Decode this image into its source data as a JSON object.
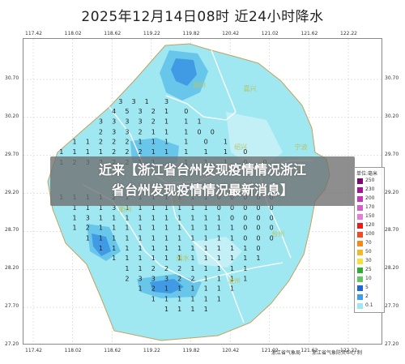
{
  "title": "2025年12月14日08时  近24小时降水",
  "headline": {
    "line1": "近来【浙江省台州发现疫情情况浙江",
    "line2": "省台州发现疫情情况最新消息】"
  },
  "lon_ticks": [
    "117.42",
    "118.02",
    "118.62",
    "119.22",
    "119.82",
    "120.42",
    "121.02",
    "121.62",
    "122.22"
  ],
  "lat_ticks": [
    "30.70",
    "30.20",
    "29.70",
    "29.20",
    "28.70",
    "28.20",
    "27.70",
    "27.20"
  ],
  "cities": [
    "湖州",
    "嘉兴",
    "绍兴",
    "宁波",
    "衢州",
    "金华",
    "台州",
    "丽水",
    "温州"
  ],
  "legend": {
    "title": "单位:毫米",
    "levels": [
      {
        "label": "250",
        "color": "#7a0a6e"
      },
      {
        "label": "230",
        "color": "#a11696"
      },
      {
        "label": "200",
        "color": "#c13bb3"
      },
      {
        "label": "170",
        "color": "#d45ecb"
      },
      {
        "label": "150",
        "color": "#e17fd8"
      },
      {
        "label": "120",
        "color": "#ea1b1b"
      },
      {
        "label": "100",
        "color": "#f24a25"
      },
      {
        "label": "70",
        "color": "#f5871e"
      },
      {
        "label": "50",
        "color": "#f7b72a"
      },
      {
        "label": "30",
        "color": "#f2e23a"
      },
      {
        "label": "25",
        "color": "#2fae33"
      },
      {
        "label": "10",
        "color": "#63c95e"
      },
      {
        "label": "5",
        "color": "#1f66d6"
      },
      {
        "label": "2",
        "color": "#3f9df0"
      },
      {
        "label": "0.1",
        "color": "#9fe8f2"
      }
    ]
  },
  "credits": {
    "left": "浙江省气象局",
    "right": "浙江省气象防灾中心 制"
  },
  "colors": {
    "light": "#9fe8f2",
    "medium": "#5fc0ea",
    "dark": "#3a93e3",
    "border": "#ffffff",
    "outline": "#c4a25c"
  },
  "grid_values": [
    [
      118.75,
      30.38,
      "3"
    ],
    [
      118.95,
      30.38,
      "3"
    ],
    [
      119.15,
      30.38,
      "1"
    ],
    [
      119.45,
      30.38,
      "3"
    ],
    [
      118.65,
      30.25,
      "4"
    ],
    [
      118.85,
      30.25,
      "5"
    ],
    [
      119.05,
      30.25,
      "3"
    ],
    [
      119.25,
      30.25,
      "2"
    ],
    [
      119.45,
      30.25,
      "1"
    ],
    [
      119.75,
      30.25,
      "0"
    ],
    [
      118.45,
      30.12,
      "3"
    ],
    [
      118.65,
      30.12,
      "3"
    ],
    [
      118.85,
      30.12,
      "3"
    ],
    [
      119.05,
      30.12,
      "3"
    ],
    [
      119.25,
      30.12,
      "2"
    ],
    [
      119.45,
      30.12,
      "1"
    ],
    [
      119.75,
      30.12,
      "1"
    ],
    [
      119.95,
      30.12,
      "1"
    ],
    [
      118.45,
      29.98,
      "2"
    ],
    [
      118.65,
      29.98,
      "3"
    ],
    [
      118.85,
      29.98,
      "3"
    ],
    [
      119.05,
      29.98,
      "2"
    ],
    [
      119.25,
      29.98,
      "1"
    ],
    [
      119.45,
      29.98,
      "1"
    ],
    [
      119.75,
      29.98,
      "1"
    ],
    [
      119.95,
      29.98,
      "0"
    ],
    [
      120.15,
      29.98,
      "0"
    ],
    [
      118.05,
      29.85,
      "1"
    ],
    [
      118.25,
      29.85,
      "1"
    ],
    [
      118.45,
      29.85,
      "2"
    ],
    [
      118.65,
      29.85,
      "2"
    ],
    [
      118.85,
      29.85,
      "2"
    ],
    [
      119.05,
      29.85,
      "1"
    ],
    [
      119.25,
      29.85,
      "1"
    ],
    [
      119.45,
      29.85,
      "1"
    ],
    [
      119.75,
      29.85,
      "1"
    ],
    [
      120.05,
      29.85,
      "0"
    ],
    [
      120.35,
      29.85,
      "1"
    ],
    [
      117.85,
      29.72,
      "1"
    ],
    [
      118.05,
      29.72,
      "1"
    ],
    [
      118.25,
      29.72,
      "1"
    ],
    [
      118.45,
      29.72,
      "1"
    ],
    [
      118.65,
      29.72,
      "2"
    ],
    [
      118.85,
      29.72,
      "2"
    ],
    [
      119.05,
      29.72,
      "2"
    ],
    [
      119.25,
      29.72,
      "1"
    ],
    [
      119.45,
      29.72,
      "1"
    ],
    [
      119.75,
      29.72,
      "1"
    ],
    [
      120.05,
      29.72,
      "1"
    ],
    [
      120.35,
      29.72,
      "1"
    ],
    [
      120.65,
      29.72,
      "0"
    ],
    [
      117.85,
      29.58,
      "1"
    ],
    [
      118.05,
      29.58,
      "2"
    ],
    [
      118.25,
      29.58,
      "3"
    ],
    [
      118.45,
      29.58,
      "2"
    ],
    [
      118.65,
      29.58,
      "2"
    ],
    [
      118.85,
      29.58,
      "2"
    ],
    [
      119.05,
      29.58,
      "1"
    ],
    [
      119.25,
      29.58,
      "1"
    ],
    [
      119.75,
      29.58,
      "1"
    ],
    [
      120.05,
      29.58,
      "1"
    ],
    [
      120.35,
      29.58,
      "1"
    ],
    [
      120.65,
      29.58,
      "0"
    ],
    [
      120.95,
      29.58,
      "0"
    ],
    [
      117.85,
      29.12,
      "1"
    ],
    [
      118.05,
      29.12,
      "1"
    ],
    [
      118.25,
      29.12,
      "1"
    ],
    [
      118.45,
      29.12,
      "1"
    ],
    [
      118.65,
      29.12,
      "2"
    ],
    [
      118.85,
      29.12,
      "1"
    ],
    [
      119.05,
      29.12,
      "1"
    ],
    [
      119.25,
      29.12,
      "1"
    ],
    [
      119.45,
      29.12,
      "1"
    ],
    [
      119.65,
      29.12,
      "1"
    ],
    [
      119.85,
      29.12,
      "1"
    ],
    [
      120.05,
      29.12,
      "1"
    ],
    [
      120.25,
      29.12,
      "0"
    ],
    [
      120.45,
      29.12,
      "0"
    ],
    [
      120.65,
      29.12,
      "0"
    ],
    [
      120.85,
      29.12,
      "0"
    ],
    [
      121.05,
      29.12,
      "0"
    ],
    [
      118.05,
      28.98,
      "1"
    ],
    [
      118.25,
      28.98,
      "1"
    ],
    [
      118.45,
      28.98,
      "1"
    ],
    [
      118.65,
      28.98,
      "3"
    ],
    [
      118.85,
      28.98,
      "1"
    ],
    [
      119.05,
      28.98,
      "1"
    ],
    [
      119.25,
      28.98,
      "1"
    ],
    [
      119.45,
      28.98,
      "1"
    ],
    [
      119.65,
      28.98,
      "1"
    ],
    [
      119.85,
      28.98,
      "1"
    ],
    [
      120.05,
      28.98,
      "1"
    ],
    [
      120.25,
      28.98,
      "0"
    ],
    [
      120.45,
      28.98,
      "0"
    ],
    [
      120.65,
      28.98,
      "0"
    ],
    [
      120.85,
      28.98,
      "0"
    ],
    [
      121.05,
      28.98,
      "0"
    ],
    [
      118.05,
      28.85,
      "1"
    ],
    [
      118.25,
      28.85,
      "3"
    ],
    [
      118.45,
      28.85,
      "1"
    ],
    [
      118.65,
      28.85,
      "1"
    ],
    [
      118.85,
      28.85,
      "1"
    ],
    [
      119.05,
      28.85,
      "1"
    ],
    [
      119.25,
      28.85,
      "1"
    ],
    [
      119.45,
      28.85,
      "1"
    ],
    [
      119.65,
      28.85,
      "1"
    ],
    [
      119.85,
      28.85,
      "1"
    ],
    [
      120.05,
      28.85,
      "1"
    ],
    [
      120.25,
      28.85,
      "1"
    ],
    [
      120.45,
      28.85,
      "0"
    ],
    [
      120.65,
      28.85,
      "0"
    ],
    [
      120.85,
      28.85,
      "0"
    ],
    [
      121.05,
      28.85,
      "0"
    ],
    [
      118.05,
      28.72,
      "1"
    ],
    [
      118.25,
      28.72,
      "2"
    ],
    [
      118.45,
      28.72,
      "1"
    ],
    [
      118.65,
      28.72,
      "1"
    ],
    [
      118.85,
      28.72,
      "1"
    ],
    [
      119.05,
      28.72,
      "1"
    ],
    [
      119.25,
      28.72,
      "1"
    ],
    [
      119.45,
      28.72,
      "1"
    ],
    [
      119.65,
      28.72,
      "1"
    ],
    [
      119.85,
      28.72,
      "1"
    ],
    [
      120.05,
      28.72,
      "1"
    ],
    [
      120.25,
      28.72,
      "1"
    ],
    [
      120.45,
      28.72,
      "1"
    ],
    [
      120.65,
      28.72,
      "0"
    ],
    [
      120.85,
      28.72,
      "0"
    ],
    [
      121.05,
      28.72,
      "0"
    ],
    [
      118.25,
      28.58,
      "1"
    ],
    [
      118.45,
      28.58,
      "1"
    ],
    [
      118.65,
      28.58,
      "1"
    ],
    [
      118.85,
      28.58,
      "1"
    ],
    [
      119.05,
      28.58,
      "1"
    ],
    [
      119.25,
      28.58,
      "1"
    ],
    [
      119.45,
      28.58,
      "1"
    ],
    [
      119.65,
      28.58,
      "1"
    ],
    [
      119.85,
      28.58,
      "1"
    ],
    [
      120.05,
      28.58,
      "1"
    ],
    [
      120.25,
      28.58,
      "1"
    ],
    [
      120.45,
      28.58,
      "1"
    ],
    [
      120.65,
      28.58,
      "0"
    ],
    [
      120.85,
      28.58,
      "0"
    ],
    [
      121.05,
      28.58,
      "0"
    ],
    [
      118.45,
      28.45,
      "1"
    ],
    [
      118.65,
      28.45,
      "1"
    ],
    [
      118.85,
      28.45,
      "1"
    ],
    [
      119.05,
      28.45,
      "1"
    ],
    [
      119.25,
      28.45,
      "1"
    ],
    [
      119.45,
      28.45,
      "1"
    ],
    [
      119.65,
      28.45,
      "1"
    ],
    [
      119.85,
      28.45,
      "1"
    ],
    [
      120.05,
      28.45,
      "1"
    ],
    [
      120.25,
      28.45,
      "1"
    ],
    [
      120.45,
      28.45,
      "1"
    ],
    [
      120.65,
      28.45,
      "1"
    ],
    [
      120.85,
      28.45,
      "0"
    ],
    [
      118.65,
      28.32,
      "1"
    ],
    [
      118.85,
      28.32,
      "1"
    ],
    [
      119.05,
      28.32,
      "1"
    ],
    [
      119.25,
      28.32,
      "1"
    ],
    [
      119.45,
      28.32,
      "1"
    ],
    [
      119.65,
      28.32,
      "1"
    ],
    [
      119.85,
      28.32,
      "1"
    ],
    [
      120.05,
      28.32,
      "1"
    ],
    [
      120.25,
      28.32,
      "1"
    ],
    [
      120.45,
      28.32,
      "1"
    ],
    [
      120.65,
      28.32,
      "1"
    ],
    [
      120.85,
      28.32,
      "1"
    ],
    [
      118.85,
      28.18,
      "1"
    ],
    [
      119.05,
      28.18,
      "1"
    ],
    [
      119.25,
      28.18,
      "2"
    ],
    [
      119.45,
      28.18,
      "2"
    ],
    [
      119.65,
      28.18,
      "2"
    ],
    [
      119.85,
      28.18,
      "1"
    ],
    [
      120.05,
      28.18,
      "1"
    ],
    [
      120.25,
      28.18,
      "1"
    ],
    [
      120.45,
      28.18,
      "1"
    ],
    [
      120.65,
      28.18,
      "1"
    ],
    [
      118.85,
      28.05,
      "2"
    ],
    [
      119.05,
      28.05,
      "3"
    ],
    [
      119.25,
      28.05,
      "3"
    ],
    [
      119.45,
      28.05,
      "3"
    ],
    [
      119.65,
      28.05,
      "2"
    ],
    [
      119.85,
      28.05,
      "2"
    ],
    [
      120.05,
      28.05,
      "1"
    ],
    [
      120.25,
      28.05,
      "1"
    ],
    [
      120.45,
      28.05,
      "1"
    ],
    [
      120.65,
      28.05,
      "1"
    ],
    [
      119.05,
      27.92,
      "1"
    ],
    [
      119.25,
      27.92,
      "2"
    ],
    [
      119.45,
      27.92,
      "1"
    ],
    [
      119.65,
      27.92,
      "1"
    ],
    [
      119.85,
      27.92,
      "1"
    ],
    [
      120.05,
      27.92,
      "1"
    ],
    [
      120.25,
      27.92,
      "1"
    ],
    [
      120.45,
      27.92,
      "1"
    ],
    [
      119.25,
      27.78,
      "1"
    ],
    [
      119.45,
      27.78,
      "1"
    ],
    [
      119.65,
      27.78,
      "1"
    ],
    [
      119.85,
      27.78,
      "1"
    ],
    [
      120.05,
      27.78,
      "1"
    ],
    [
      120.25,
      27.78,
      "1"
    ],
    [
      119.45,
      27.65,
      "1"
    ],
    [
      119.65,
      27.65,
      "1"
    ],
    [
      119.85,
      27.65,
      "1"
    ],
    [
      120.05,
      27.65,
      "1"
    ]
  ]
}
